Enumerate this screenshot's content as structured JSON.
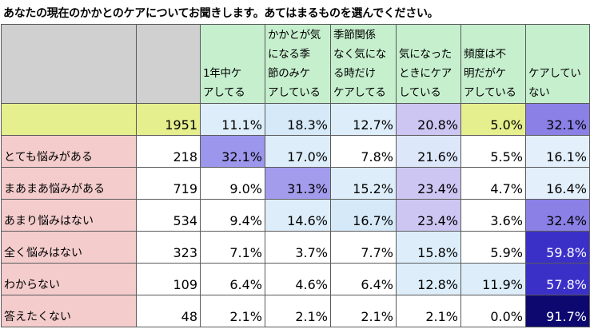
{
  "title": "あなたの現在のかかとのケアについてお聞きします。あてはまるものを選んでください。",
  "columns": [
    "1年中ケアしてる",
    "かかとが気になる季節のみケアしている",
    "季節関係なく気になる時だけケアしてる",
    "気になったときにケアしている",
    "頻度は不明だがケアしている",
    "ケアしていない"
  ],
  "column_lines": [
    [
      "1年中ケ",
      "アしてる"
    ],
    [
      "かかとが気",
      "になる季",
      "節のみケ",
      "アしている"
    ],
    [
      "季節関係",
      "なく気にな",
      "る時だけ",
      "ケアしてる"
    ],
    [
      "気になった",
      "ときにケア",
      "している"
    ],
    [
      "頻度は不",
      "明だがケ",
      "アしている"
    ],
    [
      "ケアしてい",
      "ない"
    ]
  ],
  "rows": [
    {
      "label": "",
      "n": "1951",
      "values": [
        "11.1%",
        "18.3%",
        "12.7%",
        "20.8%",
        "5.0%",
        "32.1%"
      ],
      "colors": [
        "#ddeefa",
        "#d5e9f8",
        "#ddeefa",
        "#cdc6f2",
        "#e6ef8e",
        "#8a80e6"
      ]
    },
    {
      "label": "とても悩みがある",
      "n": "218",
      "values": [
        "32.1%",
        "17.0%",
        "7.8%",
        "21.6%",
        "5.5%",
        "16.1%"
      ],
      "colors": [
        "#9c96ec",
        "#ddeefa",
        "#ffffff",
        "#dde7fa",
        "#ffffff",
        "#e3effa"
      ]
    },
    {
      "label": "まあまあ悩みがある",
      "n": "719",
      "values": [
        "9.0%",
        "31.3%",
        "15.2%",
        "23.4%",
        "4.7%",
        "16.4%"
      ],
      "colors": [
        "#ffffff",
        "#a39ced",
        "#ddeefa",
        "#cdc6f2",
        "#ffffff",
        "#e3effa"
      ]
    },
    {
      "label": "あまり悩みはない",
      "n": "534",
      "values": [
        "9.4%",
        "14.6%",
        "16.7%",
        "23.4%",
        "3.6%",
        "32.4%"
      ],
      "colors": [
        "#ffffff",
        "#ddeefa",
        "#d5e9f8",
        "#cdc6f2",
        "#ffffff",
        "#8a80e6"
      ]
    },
    {
      "label": "全く悩みはない",
      "n": "323",
      "values": [
        "7.1%",
        "3.7%",
        "7.7%",
        "15.8%",
        "5.9%",
        "59.8%"
      ],
      "colors": [
        "#ffffff",
        "#ffffff",
        "#ffffff",
        "#ddeefa",
        "#ffffff",
        "#3a30c8"
      ]
    },
    {
      "label": "わからない",
      "n": "109",
      "values": [
        "6.4%",
        "4.6%",
        "6.4%",
        "12.8%",
        "11.9%",
        "57.8%"
      ],
      "colors": [
        "#ffffff",
        "#ffffff",
        "#ffffff",
        "#ddeefa",
        "#ddeefa",
        "#3a30c8"
      ]
    },
    {
      "label": "答えたくない",
      "n": "48",
      "values": [
        "2.1%",
        "2.1%",
        "2.1%",
        "2.1%",
        "0.0%",
        "91.7%"
      ],
      "colors": [
        "#ffffff",
        "#ffffff",
        "#ffffff",
        "#ffffff",
        "#ffffff",
        "#0c0870"
      ]
    }
  ],
  "dark_cells_text_color": "#ffffff",
  "label_color": "#f4cccc",
  "total_row_color": "#e6ef8e",
  "header_color": "#c6efce",
  "blank_header_color": "#d0d0d0"
}
